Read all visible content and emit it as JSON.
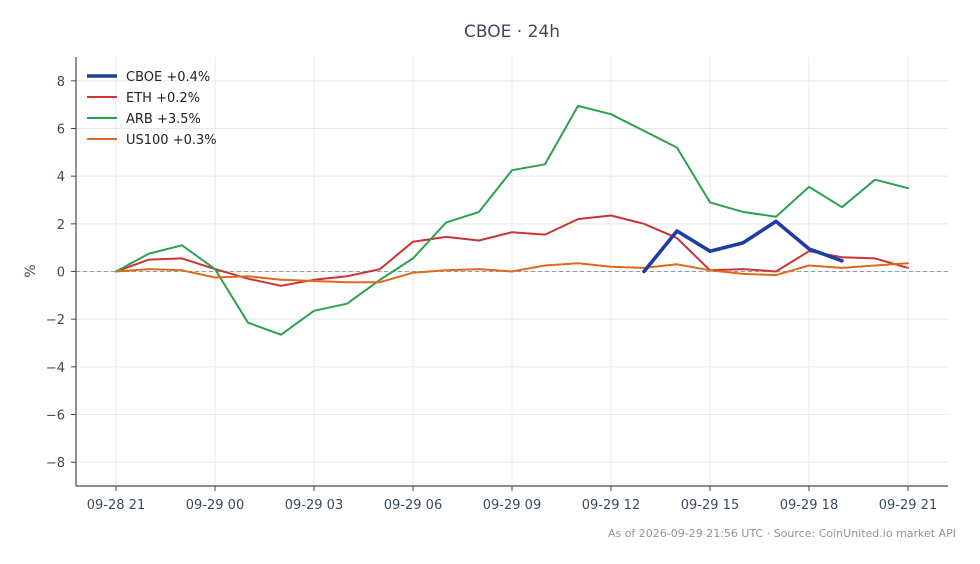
{
  "chart_data": {
    "type": "line",
    "title": "CBOE · 24h",
    "xlabel": "",
    "ylabel": "%",
    "ylim": [
      -9,
      9
    ],
    "yticks": [
      -8,
      -6,
      -4,
      -2,
      0,
      2,
      4,
      6,
      8
    ],
    "ytick_labels": [
      "−8",
      "−6",
      "−4",
      "−2",
      "0",
      "2",
      "4",
      "6",
      "8"
    ],
    "x_labels": [
      "09-28 21",
      "09-29 00",
      "09-29 03",
      "09-29 06",
      "09-29 09",
      "09-29 12",
      "09-29 15",
      "09-29 18",
      "09-29 21"
    ],
    "x_label_hours": [
      0,
      3,
      6,
      9,
      12,
      15,
      18,
      21,
      24
    ],
    "x_unit": "hours since 09-28 21:00",
    "grid": true,
    "zero_line": true,
    "legend_position": "top-left",
    "series": [
      {
        "name": "CBOE +0.4%",
        "color": "#1f3d9e",
        "x": [
          16,
          17,
          18,
          19,
          20,
          21,
          22
        ],
        "values": [
          0.0,
          1.7,
          0.85,
          1.2,
          2.1,
          0.95,
          0.45
        ]
      },
      {
        "name": "ETH +0.2%",
        "color": "#cc3333",
        "x": [
          0,
          1,
          2,
          3,
          4,
          5,
          6,
          7,
          8,
          9,
          10,
          11,
          12,
          13,
          14,
          15,
          16,
          17,
          18,
          19,
          20,
          21,
          22,
          23,
          24
        ],
        "values": [
          0.0,
          0.5,
          0.55,
          0.1,
          -0.3,
          -0.6,
          -0.35,
          -0.2,
          0.1,
          1.25,
          1.45,
          1.3,
          1.65,
          1.55,
          2.2,
          2.35,
          2.0,
          1.4,
          0.05,
          0.1,
          0.0,
          0.85,
          0.6,
          0.55,
          0.15
        ]
      },
      {
        "name": "ARB +3.5%",
        "color": "#2ca14e",
        "x": [
          0,
          1,
          2,
          3,
          4,
          5,
          6,
          7,
          8,
          9,
          10,
          11,
          12,
          13,
          14,
          15,
          16,
          17,
          18,
          19,
          20,
          21,
          22,
          23,
          24
        ],
        "values": [
          0.0,
          0.75,
          1.1,
          0.1,
          -2.15,
          -2.65,
          -1.65,
          -1.35,
          -0.35,
          0.55,
          2.05,
          2.5,
          4.25,
          4.5,
          6.95,
          6.6,
          5.9,
          5.2,
          2.9,
          2.5,
          2.3,
          3.55,
          2.7,
          3.85,
          3.5
        ]
      },
      {
        "name": "US100 +0.3%",
        "color": "#e06a1b",
        "x": [
          0,
          1,
          2,
          3,
          4,
          5,
          6,
          7,
          8,
          9,
          10,
          11,
          12,
          13,
          14,
          15,
          16,
          17,
          18,
          19,
          20,
          21,
          22,
          23,
          24
        ],
        "values": [
          0.0,
          0.1,
          0.05,
          -0.25,
          -0.2,
          -0.35,
          -0.4,
          -0.45,
          -0.45,
          -0.05,
          0.05,
          0.1,
          0.0,
          0.25,
          0.35,
          0.2,
          0.15,
          0.3,
          0.05,
          -0.1,
          -0.15,
          0.25,
          0.15,
          0.25,
          0.35
        ]
      }
    ]
  },
  "source_note": "As of 2026-09-29 21:56 UTC · Source: CoinUnited.io market API"
}
